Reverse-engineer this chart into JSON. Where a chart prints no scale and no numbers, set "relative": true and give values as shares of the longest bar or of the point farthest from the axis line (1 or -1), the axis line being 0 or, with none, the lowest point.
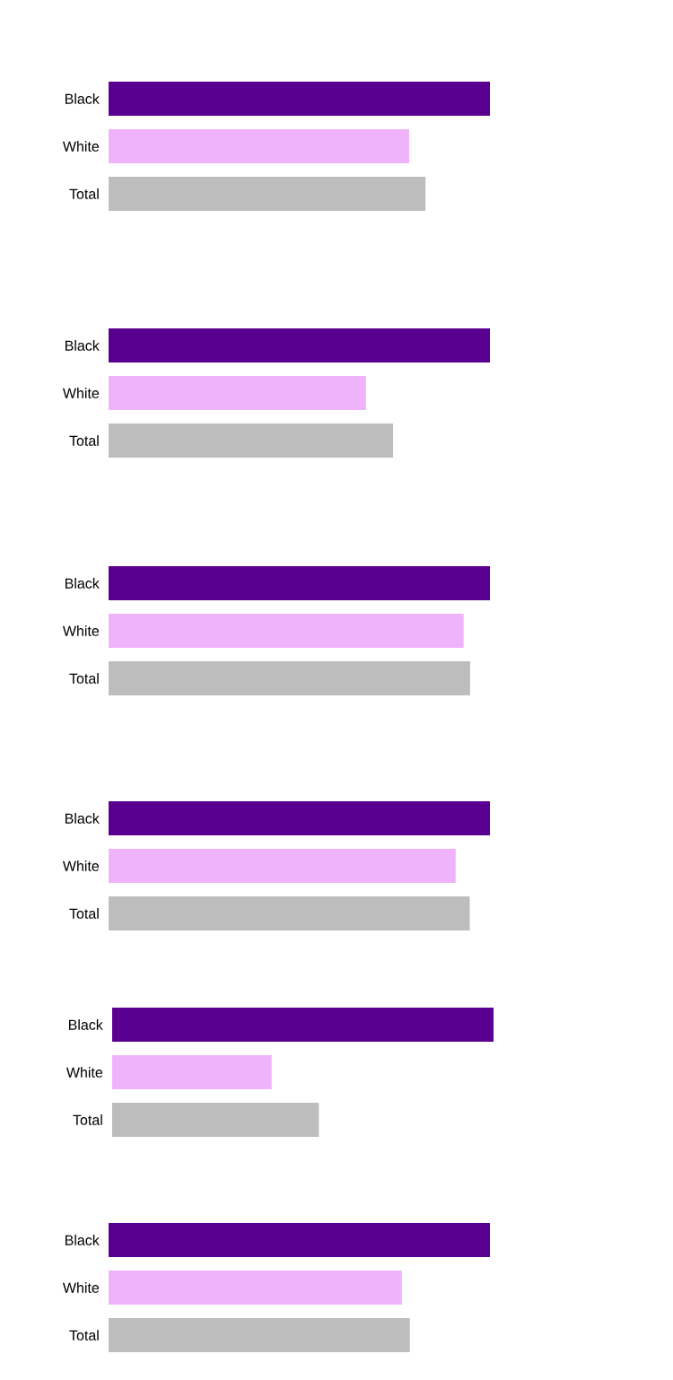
{
  "chart_data": [
    {
      "type": "bar",
      "orientation": "horizontal",
      "relative": true,
      "categories": [
        "Black",
        "White",
        "Total"
      ],
      "values": [
        1,
        0.788,
        0.831
      ],
      "colors": [
        "#5a0091",
        "#efb3fb",
        "#bebdbd"
      ]
    },
    {
      "type": "bar",
      "orientation": "horizontal",
      "relative": true,
      "categories": [
        "Black",
        "White",
        "Total"
      ],
      "values": [
        1,
        0.675,
        0.746
      ],
      "colors": [
        "#5a0091",
        "#efb3fb",
        "#bebdbd"
      ]
    },
    {
      "type": "bar",
      "orientation": "horizontal",
      "relative": true,
      "categories": [
        "Black",
        "White",
        "Total"
      ],
      "values": [
        1,
        0.931,
        0.948
      ],
      "colors": [
        "#5a0091",
        "#efb3fb",
        "#bebdbd"
      ]
    },
    {
      "type": "bar",
      "orientation": "horizontal",
      "relative": true,
      "categories": [
        "Black",
        "White",
        "Total"
      ],
      "values": [
        1,
        0.91,
        0.947
      ],
      "colors": [
        "#5a0091",
        "#efb3fb",
        "#bebdbd"
      ]
    },
    {
      "type": "bar",
      "orientation": "horizontal",
      "relative": true,
      "categories": [
        "Black",
        "White",
        "Total"
      ],
      "values": [
        1,
        0.418,
        0.542
      ],
      "colors": [
        "#5a0091",
        "#efb3fb",
        "#bebdbd"
      ]
    },
    {
      "type": "bar",
      "orientation": "horizontal",
      "relative": true,
      "categories": [
        "Black",
        "White",
        "Total"
      ],
      "values": [
        1,
        0.769,
        0.79
      ],
      "colors": [
        "#5a0091",
        "#efb3fb",
        "#bebdbd"
      ]
    }
  ]
}
